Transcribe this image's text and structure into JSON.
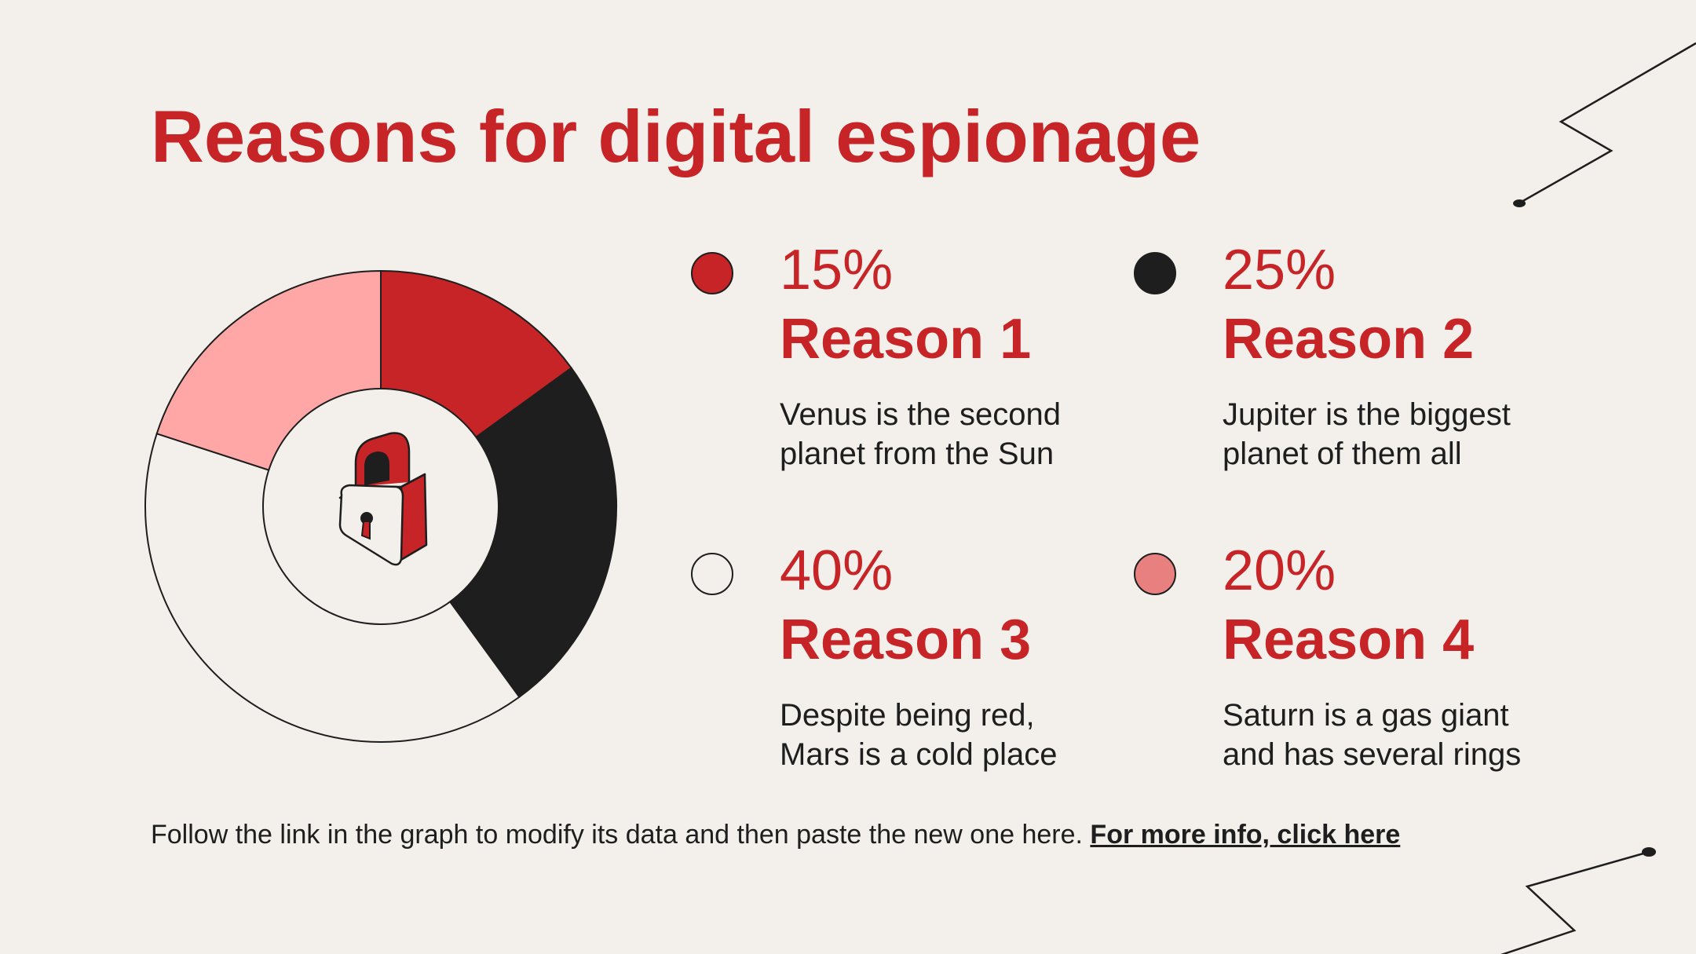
{
  "title": "Reasons for digital espionage",
  "colors": {
    "accent": "#c62427",
    "dark": "#1e1e1e",
    "background": "#f3efea",
    "pink": "#ffa7a7",
    "salmon": "#e98080",
    "light": "#f3efea"
  },
  "chart_data": {
    "type": "pie",
    "style": "donut",
    "title": "",
    "categories": [
      "Reason 1",
      "Reason 2",
      "Reason 3",
      "Reason 4"
    ],
    "values": [
      15,
      25,
      40,
      20
    ],
    "colors": [
      "#c62427",
      "#1e1e1e",
      "#f3efea",
      "#ffa7a7"
    ],
    "center_icon": "padlock-icon"
  },
  "legend": [
    {
      "percent": "15%",
      "label": "Reason 1",
      "description": "Venus is the second planet from the Sun",
      "color": "#c62427"
    },
    {
      "percent": "25%",
      "label": "Reason 2",
      "description": "Jupiter is the biggest planet of them all",
      "color": "#1e1e1e"
    },
    {
      "percent": "40%",
      "label": "Reason 3",
      "description": "Despite being red, Mars is a cold place",
      "color": "#f3efea"
    },
    {
      "percent": "20%",
      "label": "Reason 4",
      "description": "Saturn is a gas giant and has several rings",
      "color": "#e98080"
    }
  ],
  "footer": {
    "text": "Follow the link in the graph to modify its data and then paste the new one here.",
    "link": "For more info, click here"
  }
}
